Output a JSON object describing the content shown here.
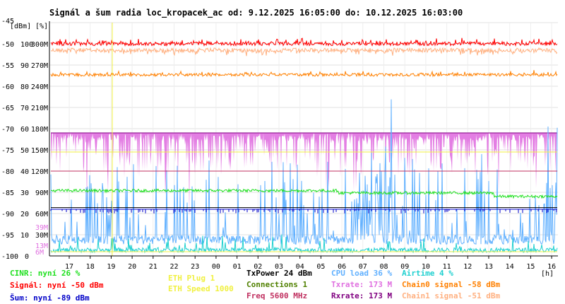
{
  "title": "Signál a šum radia loc_kropacek_ac od: 9.12.2025 16:05:00 do: 10.12.2025 16:03:00",
  "chart_data": {
    "type": "line",
    "title": "Signál a šum radia loc_kropacek_ac od: 9.12.2025 16:05:00 do: 10.12.2025 16:03:00",
    "x_unit": "[h]",
    "x_ticks": [
      "17",
      "18",
      "19",
      "20",
      "21",
      "22",
      "23",
      "00",
      "01",
      "02",
      "03",
      "04",
      "05",
      "06",
      "07",
      "08",
      "09",
      "10",
      "11",
      "12",
      "13",
      "14",
      "15",
      "16"
    ],
    "y_left_unit": "[dBm]",
    "y_pct_unit": "[%]",
    "y_left_ticks": [
      "-45",
      "-50",
      "-55",
      "-60",
      "-65",
      "-70",
      "-75",
      "-80",
      "-85",
      "-90",
      "-95",
      "-100"
    ],
    "y_pct_ticks": [
      "100",
      "90",
      "80",
      "70",
      "60",
      "50",
      "40",
      "30",
      "20",
      "10",
      "0"
    ],
    "y_rate_ticks": [
      "300M",
      "270M",
      "240M",
      "210M",
      "180M",
      "150M",
      "120M",
      "90M",
      "60M",
      "30M"
    ],
    "extra_labels": {
      "m39": "39M",
      "m13": "13M",
      "m6": "6M"
    },
    "dbm_range": [
      -100,
      -45
    ],
    "series": [
      {
        "name": "Signál",
        "color": "#ff0000",
        "level_dbm": -50
      },
      {
        "name": "Chain0 signal",
        "color": "#ff8000",
        "level_dbm": -58
      },
      {
        "name": "Chain1 signal",
        "color": "#ffb080",
        "level_dbm": -51
      },
      {
        "name": "Šum",
        "color": "#0000c8",
        "level_dbm": -89
      },
      {
        "name": "Txrate",
        "color": "#e070e0",
        "level_mbps": 173
      },
      {
        "name": "Rxrate",
        "color": "#800080",
        "level_mbps": 173
      },
      {
        "name": "CINR",
        "color": "#20e020",
        "level_pct": 26
      },
      {
        "name": "CPU load",
        "color": "#60b0ff",
        "level_pct": 36
      },
      {
        "name": "Airtime",
        "color": "#20d0d0",
        "level_pct": 4
      }
    ]
  },
  "legend": {
    "cinr": "CINR: nyní 26 %",
    "signal": "Signál: nyní -50 dBm",
    "noise": "Šum: nyní -89 dBm",
    "eth_plug": "ETH Plug 1",
    "eth_speed": "ETH Speed 1000",
    "txpower": "TxPower 24 dBm",
    "connections": "Connections 1",
    "freq": "Freq 5600 MHz",
    "cpu": "CPU load 36 %",
    "txrate": "Txrate: 173 M",
    "rxrate": "Rxrate: 173 M",
    "airtime": "Airtime 4 %",
    "chain0": "Chain0 signal -58 dBm",
    "chain1": "Chain1 signal -51 dBm"
  },
  "colors": {
    "cinr": "#20e020",
    "signal": "#ff0000",
    "noise": "#0000c8",
    "eth": "#f0f040",
    "txpower": "#000000",
    "connections": "#508000",
    "freq": "#c03060",
    "cpu": "#60b0ff",
    "txrate": "#e070e0",
    "rxrate": "#800080",
    "airtime": "#20d0d0",
    "chain0": "#ff8000",
    "chain1": "#ffb080"
  }
}
